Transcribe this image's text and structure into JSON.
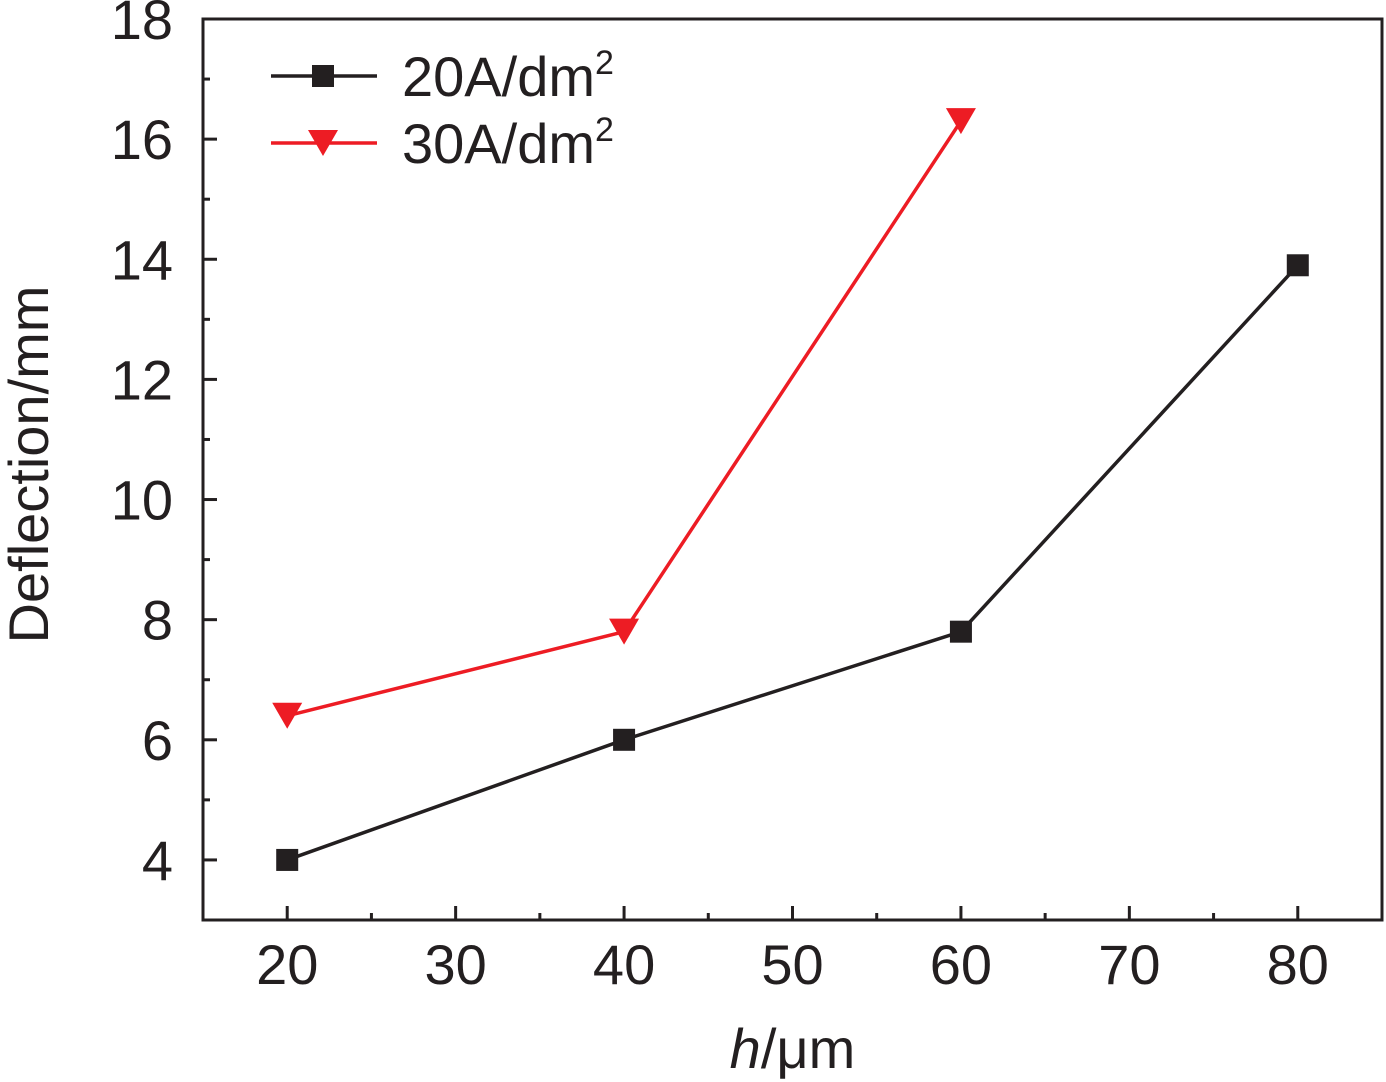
{
  "chart_data": {
    "type": "line",
    "title": "",
    "xlabel": "h/μm",
    "xlabel_parts": {
      "italic": "h",
      "rest": "/μm"
    },
    "ylabel": "Deflection/mm",
    "xlim": [
      15,
      85
    ],
    "ylim": [
      3,
      18
    ],
    "xticks": [
      20,
      30,
      40,
      50,
      60,
      70,
      80
    ],
    "yticks": [
      4,
      6,
      8,
      10,
      12,
      14,
      16,
      18
    ],
    "x_minor_step": 5,
    "y_minor_step": 1,
    "grid": false,
    "legend_position": "top-left",
    "series": [
      {
        "name": "20A/dm2",
        "label_main": "20A/dm",
        "label_sup": "2",
        "color": "#231f20",
        "marker": "square",
        "x": [
          20,
          40,
          60,
          80
        ],
        "y": [
          4.0,
          6.0,
          7.8,
          13.9
        ]
      },
      {
        "name": "30A/dm2",
        "label_main": "30A/dm",
        "label_sup": "2",
        "color": "#ed1c24",
        "marker": "triangle-down",
        "x": [
          20,
          40,
          60
        ],
        "y": [
          6.4,
          7.8,
          16.3
        ]
      }
    ]
  }
}
